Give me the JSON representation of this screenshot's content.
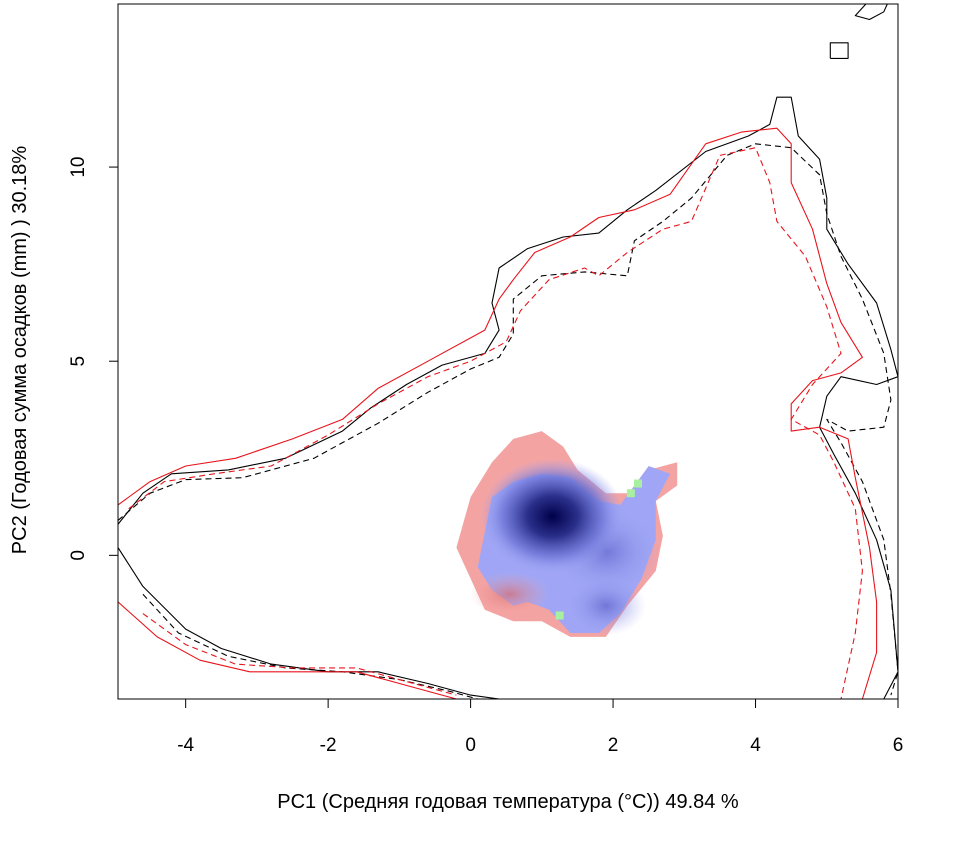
{
  "chart_data": {
    "type": "heatmap",
    "xlabel": "PC1 (Средняя годовая температура (°C)) 49.84 %",
    "ylabel": "PC2 (Годовая сумма осадков  (mm) ) 30.18%",
    "xlim": [
      -4.95,
      6.0
    ],
    "ylim": [
      -3.7,
      14.2
    ],
    "x_ticks": [
      -4,
      -2,
      0,
      2,
      4,
      6
    ],
    "y_ticks": [
      0,
      5,
      10
    ],
    "grid": false,
    "colors": {
      "red_density": "#f4a3a3",
      "blue_density_low": "#a0a6f5",
      "blue_density_high": "#00004a",
      "overlap_green": "#a8f0a0",
      "contour_black": "#000000",
      "contour_red": "#e8141c"
    },
    "density_regions": [
      {
        "name": "red",
        "color": "#f4a3a3",
        "outline": [
          [
            0.3,
            2.4
          ],
          [
            0.6,
            3.0
          ],
          [
            1.0,
            3.2
          ],
          [
            1.3,
            2.8
          ],
          [
            1.5,
            2.2
          ],
          [
            1.9,
            1.6
          ],
          [
            2.3,
            1.6
          ],
          [
            2.5,
            2.2
          ],
          [
            2.9,
            2.4
          ],
          [
            2.9,
            1.8
          ],
          [
            2.6,
            1.4
          ],
          [
            2.7,
            0.5
          ],
          [
            2.6,
            -0.4
          ],
          [
            2.2,
            -1.3
          ],
          [
            1.9,
            -2.1
          ],
          [
            1.4,
            -2.1
          ],
          [
            1.0,
            -1.7
          ],
          [
            0.6,
            -1.7
          ],
          [
            0.2,
            -1.4
          ],
          [
            0.0,
            -0.6
          ],
          [
            -0.2,
            0.2
          ],
          [
            0.0,
            1.5
          ],
          [
            0.3,
            2.4
          ]
        ]
      },
      {
        "name": "blue",
        "color": "#a0a6f5",
        "outline": [
          [
            0.3,
            1.5
          ],
          [
            0.6,
            1.9
          ],
          [
            1.0,
            2.1
          ],
          [
            1.4,
            2.0
          ],
          [
            1.8,
            1.4
          ],
          [
            2.1,
            1.3
          ],
          [
            2.5,
            2.3
          ],
          [
            2.8,
            2.1
          ],
          [
            2.6,
            1.4
          ],
          [
            2.6,
            0.4
          ],
          [
            2.4,
            -0.6
          ],
          [
            2.1,
            -1.5
          ],
          [
            1.8,
            -2.0
          ],
          [
            1.4,
            -2.0
          ],
          [
            1.1,
            -1.4
          ],
          [
            0.8,
            -1.2
          ],
          [
            0.6,
            -1.3
          ],
          [
            0.3,
            -0.9
          ],
          [
            0.1,
            -0.3
          ],
          [
            0.2,
            0.6
          ],
          [
            0.3,
            1.5
          ]
        ]
      }
    ],
    "density_peak": {
      "x": 1.15,
      "y": 1.0
    },
    "contours": [
      {
        "name": "black-solid",
        "color": "#000000",
        "dash": "none",
        "points": [
          [
            -4.95,
            0.8
          ],
          [
            -4.6,
            1.6
          ],
          [
            -4.2,
            2.1
          ],
          [
            -3.4,
            2.2
          ],
          [
            -2.6,
            2.5
          ],
          [
            -1.8,
            3.2
          ],
          [
            -1.4,
            3.8
          ],
          [
            -0.9,
            4.4
          ],
          [
            -0.4,
            4.9
          ],
          [
            0.2,
            5.2
          ],
          [
            0.4,
            5.8
          ],
          [
            0.3,
            6.5
          ],
          [
            0.4,
            7.4
          ],
          [
            0.8,
            7.9
          ],
          [
            1.3,
            8.2
          ],
          [
            1.8,
            8.3
          ],
          [
            2.2,
            8.9
          ],
          [
            2.6,
            9.4
          ],
          [
            3.3,
            10.4
          ],
          [
            3.9,
            10.8
          ],
          [
            4.2,
            11.1
          ],
          [
            4.3,
            11.8
          ],
          [
            4.5,
            11.8
          ],
          [
            4.6,
            10.8
          ],
          [
            4.9,
            10.2
          ],
          [
            5.0,
            9.2
          ],
          [
            5.0,
            8.4
          ],
          [
            5.3,
            7.5
          ],
          [
            5.7,
            6.5
          ],
          [
            5.9,
            5.3
          ],
          [
            6.0,
            4.6
          ],
          [
            5.7,
            4.4
          ],
          [
            5.2,
            4.6
          ],
          [
            5.0,
            4.1
          ],
          [
            4.9,
            3.3
          ],
          [
            5.1,
            2.6
          ],
          [
            5.4,
            1.6
          ],
          [
            5.7,
            0.4
          ],
          [
            5.9,
            -0.9
          ],
          [
            6.0,
            -3.0
          ],
          [
            5.8,
            -3.7
          ]
        ]
      },
      {
        "name": "black-solid-lower",
        "color": "#000000",
        "dash": "none",
        "points": [
          [
            -4.95,
            0.2
          ],
          [
            -4.6,
            -0.8
          ],
          [
            -4.0,
            -1.9
          ],
          [
            -3.5,
            -2.4
          ],
          [
            -2.8,
            -2.8
          ],
          [
            -2.0,
            -3.0
          ],
          [
            -1.3,
            -3.0
          ],
          [
            -0.6,
            -3.3
          ],
          [
            0.0,
            -3.6
          ],
          [
            0.4,
            -3.7
          ]
        ]
      },
      {
        "name": "black-dashed",
        "color": "#000000",
        "dash": "6,4",
        "points": [
          [
            -4.95,
            0.9
          ],
          [
            -4.5,
            1.6
          ],
          [
            -4.0,
            1.95
          ],
          [
            -3.2,
            2.0
          ],
          [
            -2.2,
            2.5
          ],
          [
            -1.3,
            3.4
          ],
          [
            -0.6,
            4.2
          ],
          [
            0.0,
            4.8
          ],
          [
            0.4,
            5.1
          ],
          [
            0.6,
            5.7
          ],
          [
            0.6,
            6.6
          ],
          [
            1.0,
            7.2
          ],
          [
            1.6,
            7.3
          ],
          [
            2.2,
            7.2
          ],
          [
            2.3,
            8.1
          ],
          [
            2.7,
            8.6
          ],
          [
            3.1,
            9.2
          ],
          [
            3.6,
            10.3
          ],
          [
            4.0,
            10.6
          ],
          [
            4.5,
            10.5
          ],
          [
            4.9,
            9.8
          ],
          [
            5.0,
            8.8
          ],
          [
            5.2,
            7.7
          ],
          [
            5.5,
            6.6
          ],
          [
            5.8,
            5.2
          ],
          [
            5.9,
            4.0
          ],
          [
            5.8,
            3.3
          ],
          [
            5.3,
            3.2
          ],
          [
            5.0,
            3.5
          ],
          [
            5.2,
            2.9
          ],
          [
            5.5,
            1.9
          ],
          [
            5.8,
            0.4
          ],
          [
            5.9,
            -1.0
          ],
          [
            6.0,
            -3.0
          ],
          [
            5.9,
            -3.6
          ]
        ]
      },
      {
        "name": "black-dashed-lower",
        "color": "#000000",
        "dash": "6,4",
        "points": [
          [
            -4.6,
            -1.0
          ],
          [
            -4.1,
            -2.0
          ],
          [
            -3.4,
            -2.6
          ],
          [
            -2.6,
            -2.9
          ],
          [
            -1.8,
            -3.0
          ],
          [
            -1.0,
            -3.2
          ],
          [
            -0.3,
            -3.5
          ],
          [
            0.1,
            -3.7
          ]
        ]
      },
      {
        "name": "red-solid",
        "color": "#e8141c",
        "dash": "none",
        "points": [
          [
            -4.95,
            1.3
          ],
          [
            -4.5,
            1.9
          ],
          [
            -4.0,
            2.3
          ],
          [
            -3.3,
            2.5
          ],
          [
            -2.5,
            3.0
          ],
          [
            -1.8,
            3.5
          ],
          [
            -1.3,
            4.3
          ],
          [
            -0.6,
            5.0
          ],
          [
            0.2,
            5.8
          ],
          [
            0.4,
            6.6
          ],
          [
            0.6,
            7.1
          ],
          [
            0.9,
            7.8
          ],
          [
            1.4,
            8.2
          ],
          [
            1.8,
            8.7
          ],
          [
            2.3,
            8.9
          ],
          [
            2.8,
            9.3
          ],
          [
            3.3,
            10.6
          ],
          [
            3.8,
            10.9
          ],
          [
            4.3,
            11.0
          ],
          [
            4.5,
            10.6
          ],
          [
            4.5,
            9.6
          ],
          [
            4.8,
            8.4
          ],
          [
            5.0,
            7.0
          ],
          [
            5.2,
            6.0
          ],
          [
            5.5,
            5.1
          ],
          [
            5.2,
            4.7
          ],
          [
            4.8,
            4.5
          ],
          [
            4.5,
            3.9
          ],
          [
            4.5,
            3.2
          ],
          [
            4.9,
            3.3
          ],
          [
            5.3,
            3.0
          ],
          [
            5.4,
            2.0
          ],
          [
            5.6,
            0.2
          ],
          [
            5.7,
            -1.2
          ],
          [
            5.7,
            -2.5
          ],
          [
            5.5,
            -3.7
          ]
        ]
      },
      {
        "name": "red-solid-lower",
        "color": "#e8141c",
        "dash": "none",
        "points": [
          [
            -4.95,
            -1.2
          ],
          [
            -4.4,
            -2.1
          ],
          [
            -3.8,
            -2.7
          ],
          [
            -3.1,
            -3.0
          ],
          [
            -2.4,
            -3.0
          ],
          [
            -1.6,
            -3.0
          ],
          [
            -0.8,
            -3.4
          ],
          [
            -0.2,
            -3.7
          ]
        ]
      },
      {
        "name": "red-dashed",
        "color": "#e8141c",
        "dash": "6,4",
        "points": [
          [
            -4.8,
            1.2
          ],
          [
            -4.3,
            1.9
          ],
          [
            -3.6,
            2.1
          ],
          [
            -2.8,
            2.3
          ],
          [
            -2.0,
            3.1
          ],
          [
            -1.3,
            3.9
          ],
          [
            -0.6,
            4.6
          ],
          [
            0.0,
            5.0
          ],
          [
            0.5,
            5.5
          ],
          [
            0.7,
            6.3
          ],
          [
            1.1,
            7.1
          ],
          [
            1.6,
            7.4
          ],
          [
            1.8,
            7.2
          ],
          [
            2.2,
            7.8
          ],
          [
            2.7,
            8.4
          ],
          [
            3.1,
            8.6
          ],
          [
            3.5,
            10.3
          ],
          [
            4.0,
            10.5
          ],
          [
            4.2,
            9.6
          ],
          [
            4.3,
            8.6
          ],
          [
            4.7,
            7.7
          ],
          [
            5.0,
            6.4
          ],
          [
            5.2,
            5.2
          ],
          [
            4.8,
            4.4
          ],
          [
            4.5,
            3.5
          ],
          [
            4.9,
            3.1
          ],
          [
            5.1,
            2.4
          ],
          [
            5.4,
            1.2
          ],
          [
            5.5,
            -0.4
          ],
          [
            5.4,
            -2.0
          ],
          [
            5.2,
            -3.7
          ]
        ]
      },
      {
        "name": "red-dashed-lower",
        "color": "#e8141c",
        "dash": "6,4",
        "points": [
          [
            -4.6,
            -1.5
          ],
          [
            -4.0,
            -2.3
          ],
          [
            -3.3,
            -2.8
          ],
          [
            -2.5,
            -2.9
          ],
          [
            -1.6,
            -2.9
          ],
          [
            -0.8,
            -3.3
          ],
          [
            -0.2,
            -3.6
          ]
        ]
      },
      {
        "name": "black-square",
        "color": "#000000",
        "dash": "none",
        "points": [
          [
            5.05,
            12.8
          ],
          [
            5.3,
            12.8
          ],
          [
            5.3,
            13.2
          ],
          [
            5.05,
            13.2
          ],
          [
            5.05,
            12.8
          ]
        ]
      },
      {
        "name": "black-top-right",
        "color": "#000000",
        "dash": "none",
        "points": [
          [
            5.55,
            14.2
          ],
          [
            5.4,
            13.9
          ],
          [
            5.6,
            13.8
          ],
          [
            5.8,
            14.0
          ],
          [
            5.85,
            14.2
          ]
        ]
      }
    ]
  }
}
